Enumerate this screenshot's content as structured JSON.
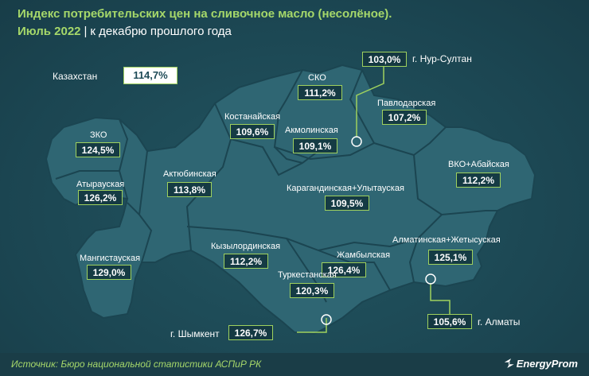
{
  "title": {
    "line1": "Индекс потребительских цен на сливочное масло (несолёное).",
    "period": "Июль 2022",
    "separator": "|",
    "subtitle": "к декабрю прошлого года"
  },
  "country": {
    "name": "Казахстан",
    "value": "114,7%"
  },
  "regions": [
    {
      "id": "zko",
      "name": "ЗКО",
      "value": "124,5%"
    },
    {
      "id": "atyrau",
      "name": "Атырауская",
      "value": "126,2%"
    },
    {
      "id": "mangystau",
      "name": "Мангистауская",
      "value": "129,0%"
    },
    {
      "id": "aktobe",
      "name": "Актюбинская",
      "value": "113,8%"
    },
    {
      "id": "kostanay",
      "name": "Костанайская",
      "value": "109,6%"
    },
    {
      "id": "sko",
      "name": "СКО",
      "value": "111,2%"
    },
    {
      "id": "akmola",
      "name": "Акмолинская",
      "value": "109,1%"
    },
    {
      "id": "pavlodar",
      "name": "Павлодарская",
      "value": "107,2%"
    },
    {
      "id": "vko",
      "name": "ВКО+Абайская",
      "value": "112,2%"
    },
    {
      "id": "karaganda",
      "name": "Карагандинская+Улытауская",
      "value": "109,5%"
    },
    {
      "id": "kyzylorda",
      "name": "Кызылординская",
      "value": "112,2%"
    },
    {
      "id": "zhambyl",
      "name": "Жамбылская",
      "value": "126,4%"
    },
    {
      "id": "turkestan",
      "name": "Туркестанская",
      "value": "120,3%"
    },
    {
      "id": "almaty_reg",
      "name": "Алматинская+Жетысуская",
      "value": "125,1%"
    }
  ],
  "cities": [
    {
      "id": "nur_sultan",
      "name": "г. Нур-Султан",
      "value": "103,0%"
    },
    {
      "id": "almaty",
      "name": "г. Алматы",
      "value": "105,6%"
    },
    {
      "id": "shymkent",
      "name": "г. Шымкент",
      "value": "126,7%"
    }
  ],
  "footer": {
    "source": "Источник: Бюро национальной статистики АСПиР РК",
    "logo": "EnergyProm"
  },
  "colors": {
    "accent": "#a6d86a",
    "map_fill": "#2f6673",
    "map_stroke": "#1b4551",
    "background": "#1d4a56"
  }
}
